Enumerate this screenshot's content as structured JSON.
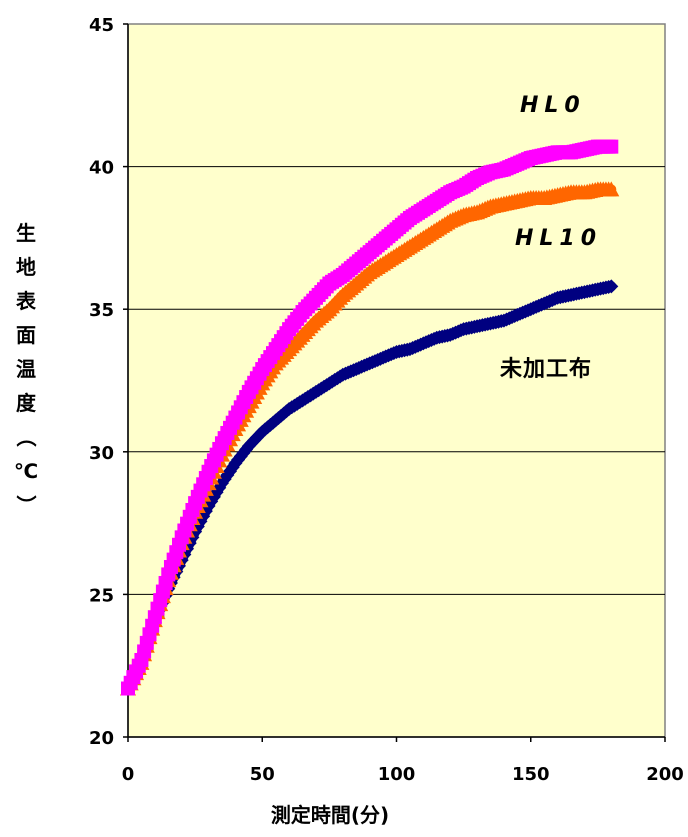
{
  "chart_data": {
    "type": "line",
    "title": "",
    "xlabel": "測定時間(分)",
    "ylabel": "生地表面温度（℃）",
    "xlim": [
      0,
      200
    ],
    "ylim": [
      20,
      45
    ],
    "x_ticks": [
      "0",
      "50",
      "100",
      "150",
      "200"
    ],
    "y_ticks": [
      "20",
      "25",
      "30",
      "35",
      "40",
      "45"
    ],
    "grid": "horizontal",
    "background": "#FFFFCC",
    "series": [
      {
        "name": "HL0",
        "color": "#FF00FF",
        "marker": "square",
        "x": [
          0,
          5,
          10,
          15,
          20,
          25,
          30,
          35,
          40,
          45,
          50,
          55,
          60,
          65,
          70,
          75,
          80,
          85,
          90,
          95,
          100,
          105,
          110,
          115,
          120,
          125,
          130,
          135,
          140,
          145,
          150,
          155,
          160,
          165,
          170,
          175,
          180
        ],
        "y": [
          21.7,
          22.7,
          24.2,
          25.7,
          27.0,
          28.2,
          29.3,
          30.3,
          31.2,
          32.1,
          32.9,
          33.6,
          34.3,
          34.9,
          35.4,
          35.9,
          36.2,
          36.6,
          37.0,
          37.4,
          37.8,
          38.2,
          38.5,
          38.8,
          39.1,
          39.3,
          39.6,
          39.8,
          39.9,
          40.1,
          40.3,
          40.4,
          40.5,
          40.5,
          40.6,
          40.7,
          40.7
        ]
      },
      {
        "name": "HL10",
        "color": "#FF6600",
        "marker": "triangle",
        "x": [
          0,
          5,
          10,
          15,
          20,
          25,
          30,
          35,
          40,
          45,
          50,
          55,
          60,
          65,
          70,
          75,
          80,
          85,
          90,
          95,
          100,
          105,
          110,
          115,
          120,
          125,
          130,
          135,
          140,
          145,
          150,
          155,
          160,
          165,
          170,
          175,
          180
        ],
        "y": [
          21.7,
          22.6,
          24.1,
          25.5,
          26.8,
          27.9,
          28.9,
          29.9,
          30.8,
          31.6,
          32.4,
          33.1,
          33.6,
          34.1,
          34.6,
          35.0,
          35.5,
          35.9,
          36.3,
          36.6,
          36.9,
          37.2,
          37.5,
          37.8,
          38.1,
          38.3,
          38.4,
          38.6,
          38.7,
          38.8,
          38.9,
          38.9,
          39.0,
          39.1,
          39.1,
          39.2,
          39.2
        ]
      },
      {
        "name": "未加工布",
        "color": "#000080",
        "marker": "diamond",
        "x": [
          0,
          5,
          10,
          15,
          20,
          25,
          30,
          35,
          40,
          45,
          50,
          55,
          60,
          65,
          70,
          75,
          80,
          85,
          90,
          95,
          100,
          105,
          110,
          115,
          120,
          125,
          130,
          135,
          140,
          145,
          150,
          155,
          160,
          165,
          170,
          175,
          180
        ],
        "y": [
          21.7,
          22.7,
          24.0,
          25.2,
          26.2,
          27.2,
          28.1,
          28.9,
          29.6,
          30.2,
          30.7,
          31.1,
          31.5,
          31.8,
          32.1,
          32.4,
          32.7,
          32.9,
          33.1,
          33.3,
          33.5,
          33.6,
          33.8,
          34.0,
          34.1,
          34.3,
          34.4,
          34.5,
          34.6,
          34.8,
          35.0,
          35.2,
          35.4,
          35.5,
          35.6,
          35.7,
          35.8
        ]
      }
    ]
  }
}
